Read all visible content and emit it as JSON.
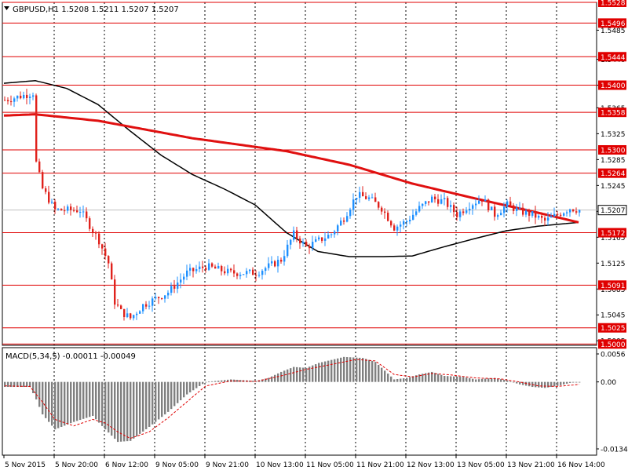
{
  "colors": {
    "background": "#ffffff",
    "frame": "#000000",
    "grid": "#000000",
    "bull_candle": "#1e90ff",
    "bear_candle": "#e0221c",
    "level_line": "#e00000",
    "ma_slow": "#e01010",
    "ma_fast": "#000000",
    "macd_hist": "#808080",
    "macd_signal": "#e00000",
    "current_price_line": "#c0c0c0",
    "level_label_bg": "#e00000",
    "level_label_text": "#ffffff",
    "current_label_bg": "#ffffff"
  },
  "chart_data": [
    {
      "type": "candlestick",
      "title": "GBPUSD,H1  1.5208 1.5211 1.5207 1.5207",
      "symbol_icon": "triangle-down-icon",
      "ylim": [
        1.4998,
        1.5528
      ],
      "y_tick_labels": [
        "1.5485",
        "1.5440",
        "1.5400",
        "1.5365",
        "1.5325",
        "1.5285",
        "1.5245",
        "1.5205",
        "1.5165",
        "1.5125",
        "1.5085",
        "1.5045",
        "1.5005"
      ],
      "y_tick_values": [
        1.5485,
        1.544,
        1.54,
        1.5365,
        1.5325,
        1.5285,
        1.5245,
        1.5205,
        1.5165,
        1.5125,
        1.5085,
        1.5045,
        1.5005
      ],
      "horizontal_levels": [
        "1.5528",
        "1.5496",
        "1.5444",
        "1.5400",
        "1.5358",
        "1.5300",
        "1.5264",
        "1.5172",
        "1.5091",
        "1.5025",
        "1.5000"
      ],
      "horizontal_level_values": [
        1.5528,
        1.5496,
        1.5444,
        1.54,
        1.5358,
        1.53,
        1.5264,
        1.5172,
        1.5091,
        1.5025,
        1.5
      ],
      "current_price": "1.5207",
      "current_price_value": 1.5207,
      "x_tick_labels": [
        "5 Nov 2015",
        "5 Nov 20:00",
        "6 Nov 12:00",
        "9 Nov 05:00",
        "9 Nov 21:00",
        "10 Nov 13:00",
        "11 Nov 05:00",
        "11 Nov 21:00",
        "12 Nov 13:00",
        "13 Nov 05:00",
        "13 Nov 21:00",
        "16 Nov 14:00"
      ],
      "x_tick_bar_index": [
        0,
        16,
        32,
        48,
        64,
        80,
        96,
        112,
        128,
        144,
        160,
        176
      ],
      "grid": "vertical dotted",
      "bar_count": 184,
      "close_anchors": [
        [
          0,
          1.5377
        ],
        [
          5,
          1.5383
        ],
        [
          9,
          1.5388
        ],
        [
          10,
          1.528
        ],
        [
          12,
          1.524
        ],
        [
          16,
          1.5207
        ],
        [
          24,
          1.5207
        ],
        [
          30,
          1.516
        ],
        [
          33,
          1.5125
        ],
        [
          35,
          1.5065
        ],
        [
          37,
          1.505
        ],
        [
          40,
          1.504
        ],
        [
          44,
          1.506
        ],
        [
          52,
          1.508
        ],
        [
          58,
          1.511
        ],
        [
          64,
          1.512
        ],
        [
          72,
          1.511
        ],
        [
          80,
          1.511
        ],
        [
          88,
          1.513
        ],
        [
          92,
          1.517
        ],
        [
          96,
          1.515
        ],
        [
          100,
          1.516
        ],
        [
          104,
          1.517
        ],
        [
          108,
          1.5195
        ],
        [
          112,
          1.523
        ],
        [
          116,
          1.5225
        ],
        [
          120,
          1.521
        ],
        [
          124,
          1.518
        ],
        [
          128,
          1.519
        ],
        [
          132,
          1.521
        ],
        [
          136,
          1.5225
        ],
        [
          140,
          1.522
        ],
        [
          144,
          1.52
        ],
        [
          148,
          1.5215
        ],
        [
          152,
          1.5225
        ],
        [
          156,
          1.52
        ],
        [
          160,
          1.5215
        ],
        [
          164,
          1.5205
        ],
        [
          168,
          1.52
        ],
        [
          172,
          1.519
        ],
        [
          176,
          1.52
        ],
        [
          180,
          1.521
        ],
        [
          183,
          1.5207
        ]
      ],
      "ma_slow": [
        [
          0,
          1.5353
        ],
        [
          10,
          1.5355
        ],
        [
          30,
          1.5345
        ],
        [
          60,
          1.5318
        ],
        [
          90,
          1.5298
        ],
        [
          110,
          1.5277
        ],
        [
          130,
          1.5248
        ],
        [
          150,
          1.5225
        ],
        [
          170,
          1.5203
        ],
        [
          183,
          1.5188
        ]
      ],
      "ma_fast": [
        [
          0,
          1.5403
        ],
        [
          10,
          1.5407
        ],
        [
          20,
          1.5395
        ],
        [
          30,
          1.537
        ],
        [
          40,
          1.533
        ],
        [
          50,
          1.5292
        ],
        [
          60,
          1.5262
        ],
        [
          70,
          1.524
        ],
        [
          80,
          1.5215
        ],
        [
          90,
          1.5172
        ],
        [
          100,
          1.5143
        ],
        [
          110,
          1.5135
        ],
        [
          120,
          1.5135
        ],
        [
          130,
          1.5136
        ],
        [
          140,
          1.515
        ],
        [
          150,
          1.5163
        ],
        [
          160,
          1.5175
        ],
        [
          170,
          1.5182
        ],
        [
          183,
          1.5188
        ]
      ]
    },
    {
      "type": "histogram",
      "title": "MACD(5,34,5) -0.00011 -0.00049",
      "ylim": [
        -0.0134,
        0.0056
      ],
      "y_tick_labels": [
        "0.0056",
        "0.00",
        "-0.0134"
      ],
      "y_tick_values": [
        0.0056,
        0.0,
        -0.0134
      ],
      "hist_anchors": [
        [
          0,
          -0.001
        ],
        [
          8,
          -0.001
        ],
        [
          10,
          -0.0035
        ],
        [
          12,
          -0.0065
        ],
        [
          16,
          -0.0095
        ],
        [
          22,
          -0.008
        ],
        [
          28,
          -0.0068
        ],
        [
          32,
          -0.0095
        ],
        [
          36,
          -0.012
        ],
        [
          40,
          -0.0118
        ],
        [
          46,
          -0.009
        ],
        [
          52,
          -0.006
        ],
        [
          58,
          -0.0025
        ],
        [
          64,
          0.0
        ],
        [
          72,
          0.0005
        ],
        [
          80,
          0.0002
        ],
        [
          84,
          0.0008
        ],
        [
          88,
          0.002
        ],
        [
          92,
          0.003
        ],
        [
          96,
          0.0028
        ],
        [
          100,
          0.0038
        ],
        [
          108,
          0.005
        ],
        [
          114,
          0.0048
        ],
        [
          118,
          0.004
        ],
        [
          124,
          0.0005
        ],
        [
          128,
          0.0008
        ],
        [
          132,
          0.0015
        ],
        [
          136,
          0.002
        ],
        [
          140,
          0.0012
        ],
        [
          146,
          0.001
        ],
        [
          150,
          0.0005
        ],
        [
          156,
          0.0008
        ],
        [
          160,
          0.0003
        ],
        [
          164,
          -0.0005
        ],
        [
          168,
          -0.001
        ],
        [
          172,
          -0.0012
        ],
        [
          176,
          -0.0008
        ],
        [
          180,
          -0.0002
        ],
        [
          183,
          0.0
        ]
      ],
      "signal_anchors": [
        [
          0,
          -0.0008
        ],
        [
          8,
          -0.0009
        ],
        [
          12,
          -0.004
        ],
        [
          16,
          -0.0075
        ],
        [
          22,
          -0.0088
        ],
        [
          28,
          -0.0075
        ],
        [
          32,
          -0.0082
        ],
        [
          36,
          -0.01
        ],
        [
          40,
          -0.0113
        ],
        [
          46,
          -0.01
        ],
        [
          52,
          -0.0072
        ],
        [
          58,
          -0.004
        ],
        [
          64,
          -0.0008
        ],
        [
          72,
          0.0002
        ],
        [
          80,
          0.0001
        ],
        [
          88,
          0.0012
        ],
        [
          96,
          0.0025
        ],
        [
          104,
          0.0035
        ],
        [
          112,
          0.0045
        ],
        [
          118,
          0.0042
        ],
        [
          124,
          0.0015
        ],
        [
          130,
          0.001
        ],
        [
          136,
          0.0017
        ],
        [
          142,
          0.0014
        ],
        [
          150,
          0.0008
        ],
        [
          158,
          0.0006
        ],
        [
          164,
          0.0
        ],
        [
          170,
          -0.0008
        ],
        [
          176,
          -0.0009
        ],
        [
          183,
          -0.0005
        ]
      ]
    }
  ]
}
